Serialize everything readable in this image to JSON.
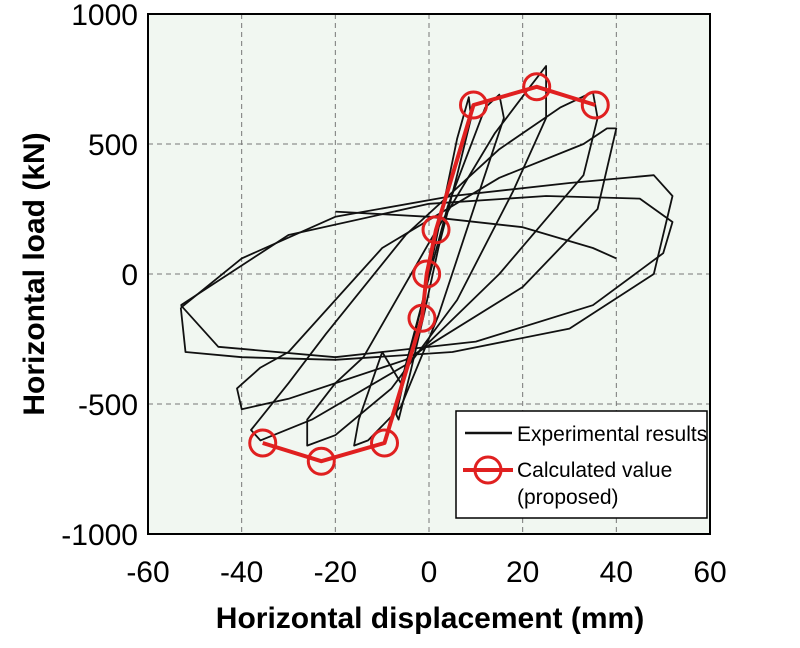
{
  "chart_data": {
    "type": "line",
    "xlabel": "Horizontal displacement (mm)",
    "ylabel": "Horizontal load (kN)",
    "xlim": [
      -60,
      60
    ],
    "ylim": [
      -1000,
      1000
    ],
    "xticks": [
      -60,
      -40,
      -20,
      0,
      20,
      40,
      60
    ],
    "yticks": [
      -1000,
      -500,
      0,
      500,
      1000
    ],
    "x_tick_labels": [
      "-60",
      "-40",
      "-20",
      "0",
      "20",
      "40",
      "60"
    ],
    "y_tick_labels": [
      "-1000",
      "-500",
      "0",
      "500",
      "1000"
    ],
    "grid": true,
    "legend_position": "bottom-right",
    "colors": {
      "plot_background": "#f1f7f1",
      "experimental": "#111111",
      "calculated": "#e02020",
      "grid": "#777777"
    },
    "series": [
      {
        "name": "Experimental results",
        "style": "line",
        "loops": [
          {
            "x": [
              0,
              3,
              6,
              8.5,
              9,
              6,
              2,
              -1,
              -4,
              -6.5,
              -7,
              -4,
              -1,
              0
            ],
            "y": [
              0,
              260,
              520,
              680,
              600,
              380,
              100,
              -150,
              -380,
              -560,
              -540,
              -300,
              -80,
              0
            ]
          },
          {
            "x": [
              -6,
              4,
              12,
              15,
              16,
              11,
              2,
              -6,
              -13,
              -16,
              -15,
              -10,
              -6
            ],
            "y": [
              -420,
              260,
              640,
              690,
              600,
              330,
              -160,
              -510,
              -640,
              -660,
              -560,
              -300,
              -420
            ]
          },
          {
            "x": [
              -14,
              0,
              14,
              22,
              25,
              25,
              18,
              6,
              -8,
              -20,
              -26,
              -26,
              -20,
              -14
            ],
            "y": [
              -320,
              120,
              540,
              730,
              800,
              600,
              320,
              -100,
              -440,
              -620,
              -660,
              -560,
              -420,
              -320
            ]
          },
          {
            "x": [
              -22,
              -5,
              15,
              28,
              35,
              36,
              33,
              15,
              -5,
              -25,
              -36,
              -38,
              -30,
              -22
            ],
            "y": [
              -230,
              150,
              480,
              640,
              700,
              600,
              380,
              0,
              -350,
              -560,
              -640,
              -600,
              -420,
              -230
            ]
          },
          {
            "x": [
              -30,
              -10,
              15,
              33,
              38,
              40,
              36,
              20,
              -5,
              -30,
              -40,
              -41,
              -36,
              -30
            ],
            "y": [
              -300,
              100,
              370,
              500,
              560,
              560,
              250,
              -50,
              -330,
              -480,
              -520,
              -440,
              -360,
              -300
            ]
          },
          {
            "x": [
              -53,
              -40,
              -20,
              5,
              30,
              48,
              52,
              48,
              30,
              5,
              -20,
              -40,
              -52,
              -53
            ],
            "y": [
              -130,
              60,
              220,
              300,
              350,
              380,
              300,
              0,
              -210,
              -300,
              -330,
              -320,
              -300,
              -130
            ]
          },
          {
            "x": [
              -53,
              -30,
              0,
              25,
              45,
              52,
              50,
              35,
              10,
              -20,
              -45,
              -53
            ],
            "y": [
              -120,
              150,
              270,
              300,
              290,
              200,
              80,
              -120,
              -260,
              -320,
              -280,
              -120
            ]
          },
          {
            "x": [
              -20,
              0,
              20,
              35,
              40
            ],
            "y": [
              240,
              220,
              180,
              100,
              60
            ]
          }
        ]
      },
      {
        "name": "Calculated value",
        "name_line2": "(proposed)",
        "style": "line+circle",
        "x": [
          -35.5,
          -23,
          -9.5,
          -1.5,
          -0.5,
          1.5,
          9.5,
          23,
          35.5
        ],
        "y": [
          -650,
          -720,
          -650,
          -170,
          0,
          170,
          650,
          720,
          650
        ]
      }
    ]
  }
}
